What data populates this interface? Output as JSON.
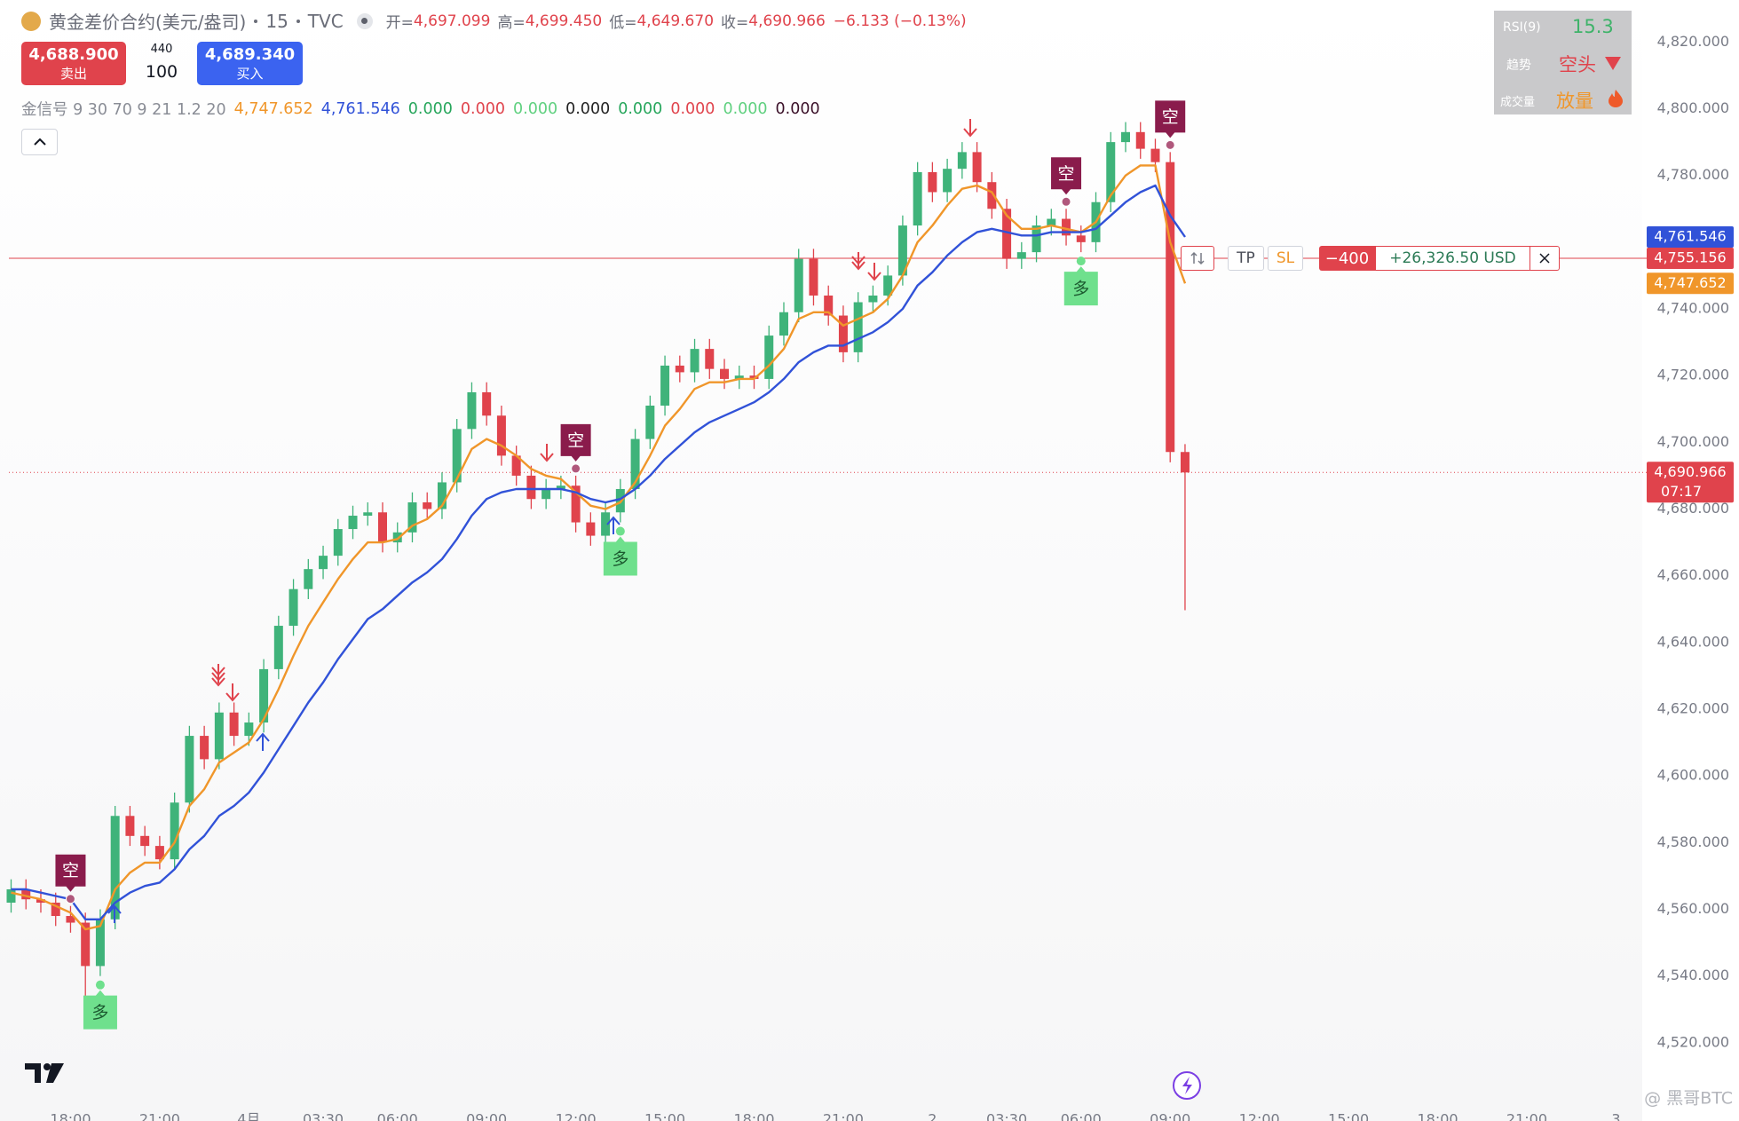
{
  "header": {
    "title": "黄金差价合约(美元/盎司)",
    "interval": "15",
    "source": "TVC",
    "ohlc": [
      {
        "label": "开=",
        "value": "4,697.099"
      },
      {
        "label": "高=",
        "value": "4,699.450"
      },
      {
        "label": "低=",
        "value": "4,649.670"
      },
      {
        "label": "收=",
        "value": "4,690.966"
      }
    ],
    "change": "−6.133 (−0.13%)"
  },
  "trade": {
    "sell_price": "4,688.900",
    "sell_label": "卖出",
    "spread": "440",
    "quantity": "100",
    "buy_price": "4,689.340",
    "buy_label": "买入"
  },
  "indicator": {
    "name": "金信号 9 30 70 9 21 1.2 20",
    "values": [
      {
        "text": "4,747.652",
        "color": "#f0962a"
      },
      {
        "text": "4,761.546",
        "color": "#3152d8"
      },
      {
        "text": "0.000",
        "color": "#26a65b"
      },
      {
        "text": "0.000",
        "color": "#e0434c"
      },
      {
        "text": "0.000",
        "color": "#5fd07f"
      },
      {
        "text": "0.000",
        "color": "#222222"
      },
      {
        "text": "0.000",
        "color": "#26a65b"
      },
      {
        "text": "0.000",
        "color": "#e0434c"
      },
      {
        "text": "0.000",
        "color": "#5fd07f"
      },
      {
        "text": "0.000",
        "color": "#3a1028"
      }
    ]
  },
  "rsi_panel": {
    "rsi_label": "RSI(9)",
    "rsi_value": "15.3",
    "trend_label": "趋势",
    "trend_value": "空头",
    "volume_label": "成交量",
    "volume_value": "放量"
  },
  "watermark": "@ 黑哥BTC",
  "chart_data": {
    "type": "candlestick",
    "categories": [
      null,
      null,
      null,
      null,
      "18:00",
      null,
      null,
      null,
      null,
      null,
      "21:00",
      null,
      null,
      null,
      null,
      null,
      "4月",
      null,
      null,
      null,
      null,
      "03:30",
      null,
      null,
      null,
      null,
      "06:00",
      null,
      null,
      null,
      null,
      null,
      "09:00",
      null,
      null,
      null,
      null,
      null,
      "12:00",
      null,
      null,
      null,
      null,
      null,
      "15:00",
      null,
      null,
      null,
      null,
      null,
      "18:00",
      null,
      null,
      null,
      null,
      null,
      "21:00",
      null,
      null,
      null,
      null,
      null,
      "2",
      null,
      null,
      null,
      null,
      "03:30",
      null,
      null,
      null,
      null,
      "06:00",
      null,
      null,
      null,
      null,
      null,
      "09:00",
      null,
      null,
      null,
      null,
      null,
      "12:00",
      null,
      null,
      null,
      null,
      null,
      "15:00",
      null,
      null,
      null,
      null,
      null,
      "18:00",
      null,
      null,
      null,
      null,
      null,
      "21:00",
      null,
      null,
      null,
      null,
      null,
      "3"
    ],
    "open": [
      4562,
      4566,
      4563,
      4562,
      4558,
      4556,
      4543,
      4557,
      4588,
      4582,
      4579,
      4575,
      4592,
      4612,
      4605,
      4619,
      4612,
      4616,
      4632,
      4645,
      4656,
      4662,
      4666,
      4674,
      4678,
      4679,
      4670,
      4673,
      4682,
      4680,
      4688,
      4704,
      4715,
      4708,
      4696,
      4690,
      4683,
      4686,
      4687,
      4676,
      4672,
      4679,
      4686,
      4701,
      4711,
      4723,
      4721,
      4728,
      4722,
      4719,
      4720,
      4719,
      4732,
      4739,
      4755,
      4744,
      4738,
      4727,
      4742,
      4744,
      4750,
      4765,
      4781,
      4775,
      4782,
      4787,
      4778,
      4770,
      4755,
      4757,
      4765,
      4767,
      4762,
      4760,
      4772,
      4790,
      4793,
      4788,
      4784,
      4697.099,
      null,
      null,
      null,
      null,
      null,
      null,
      null,
      null,
      null,
      null,
      null,
      null,
      null,
      null,
      null,
      null,
      null,
      null,
      null,
      null,
      null,
      null,
      null,
      null,
      null,
      null,
      null,
      null,
      null
    ],
    "high": [
      4569,
      4569,
      4566,
      4565,
      4561,
      4559,
      4560,
      4591,
      4591,
      4585,
      4582,
      4595,
      4615,
      4615,
      4622,
      4622,
      4619,
      4635,
      4648,
      4659,
      4665,
      4669,
      4677,
      4681,
      4682,
      4682,
      4676,
      4685,
      4685,
      4691,
      4707,
      4718,
      4718,
      4711,
      4699,
      4693,
      4689,
      4690,
      4690,
      4679,
      4682,
      4689,
      4704,
      4714,
      4726,
      4726,
      4731,
      4731,
      4725,
      4723,
      4723,
      4735,
      4742,
      4758,
      4758,
      4747,
      4741,
      4745,
      4747,
      4753,
      4768,
      4784,
      4784,
      4785,
      4790,
      4790,
      4781,
      4773,
      4760,
      4768,
      4770,
      4770,
      4765,
      4775,
      4793,
      4796,
      4796,
      4791,
      4787,
      4699.45,
      null,
      null,
      null,
      null,
      null,
      null,
      null,
      null,
      null,
      null,
      null,
      null,
      null,
      null,
      null,
      null,
      null,
      null,
      null,
      null,
      null,
      null,
      null,
      null,
      null,
      null,
      null,
      null,
      null
    ],
    "low": [
      4559,
      4560,
      4559,
      4555,
      4553,
      4529,
      4540,
      4554,
      4579,
      4576,
      4572,
      4572,
      4589,
      4602,
      4602,
      4609,
      4609,
      4613,
      4629,
      4642,
      4653,
      4659,
      4663,
      4671,
      4675,
      4667,
      4667,
      4670,
      4677,
      4677,
      4685,
      4701,
      4705,
      4693,
      4687,
      4680,
      4680,
      4683,
      4673,
      4669,
      4669,
      4676,
      4683,
      4698,
      4708,
      4718,
      4718,
      4719,
      4716,
      4716,
      4716,
      4716,
      4729,
      4736,
      4741,
      4735,
      4724,
      4724,
      4739,
      4741,
      4747,
      4762,
      4772,
      4772,
      4779,
      4775,
      4767,
      4752,
      4752,
      4754,
      4762,
      4759,
      4757,
      4757,
      4769,
      4787,
      4785,
      4781,
      4694,
      4649.67,
      null,
      null,
      null,
      null,
      null,
      null,
      null,
      null,
      null,
      null,
      null,
      null,
      null,
      null,
      null,
      null,
      null,
      null,
      null,
      null,
      null,
      null,
      null,
      null,
      null,
      null,
      null,
      null,
      null
    ],
    "close": [
      4566,
      4563,
      4562,
      4558,
      4556,
      4543,
      4557,
      4588,
      4582,
      4579,
      4575,
      4592,
      4612,
      4605,
      4619,
      4612,
      4616,
      4632,
      4645,
      4656,
      4662,
      4666,
      4674,
      4678,
      4679,
      4670,
      4673,
      4682,
      4680,
      4688,
      4704,
      4715,
      4708,
      4696,
      4690,
      4683,
      4686,
      4687,
      4676,
      4672,
      4679,
      4686,
      4701,
      4711,
      4723,
      4721,
      4728,
      4722,
      4719,
      4720,
      4719,
      4732,
      4739,
      4755,
      4744,
      4738,
      4727,
      4742,
      4744,
      4750,
      4765,
      4781,
      4775,
      4782,
      4787,
      4778,
      4770,
      4755,
      4757,
      4765,
      4767,
      4762,
      4760,
      4772,
      4790,
      4793,
      4788,
      4784,
      4697.099,
      4690.966,
      null,
      null,
      null,
      null,
      null,
      null,
      null,
      null,
      null,
      null,
      null,
      null,
      null,
      null,
      null,
      null,
      null,
      null,
      null,
      null,
      null,
      null,
      null,
      null,
      null,
      null,
      null,
      null,
      null
    ],
    "up_color": "#3fb37a",
    "down_color": "#e0434c",
    "lines": [
      {
        "color": "#f0962a",
        "values": [
          4565,
          4564,
          4563,
          4561,
          4559,
          4554,
          4555,
          4566,
          4571,
          4574,
          4574,
          4580,
          4591,
          4596,
          4604,
          4607,
          4610,
          4617,
          4626,
          4636,
          4645,
          4652,
          4659,
          4665,
          4670,
          4670,
          4671,
          4675,
          4677,
          4681,
          4689,
          4698,
          4701,
          4699,
          4696,
          4692,
          4690,
          4689,
          4685,
          4681,
          4680,
          4682,
          4688,
          4696,
          4705,
          4710,
          4716,
          4718,
          4718,
          4719,
          4719,
          4723,
          4728,
          4737,
          4739,
          4739,
          4735,
          4737,
          4739,
          4743,
          4750,
          4760,
          4765,
          4771,
          4776,
          4777,
          4775,
          4768,
          4764,
          4764,
          4765,
          4764,
          4763,
          4766,
          4774,
          4780,
          4783,
          4783,
          4760,
          4747.652,
          null,
          null,
          null,
          null,
          null,
          null,
          null,
          null,
          null,
          null,
          null,
          null,
          null,
          null,
          null,
          null,
          null,
          null,
          null,
          null,
          null,
          null,
          null,
          null,
          null,
          null,
          null,
          null,
          null
        ]
      },
      {
        "color": "#3152d8",
        "values": [
          4566,
          4566,
          4565,
          4564,
          4563,
          4557,
          4557,
          4562,
          4565,
          4567,
          4568,
          4572,
          4578,
          4582,
          4588,
          4591,
          4595,
          4601,
          4608,
          4615,
          4622,
          4628,
          4635,
          4641,
          4647,
          4650,
          4654,
          4658,
          4661,
          4665,
          4671,
          4678,
          4683,
          4685,
          4686,
          4686,
          4686,
          4686,
          4685,
          4683,
          4682,
          4683,
          4686,
          4690,
          4695,
          4699,
          4703,
          4706,
          4708,
          4710,
          4712,
          4715,
          4719,
          4724,
          4727,
          4729,
          4729,
          4731,
          4733,
          4736,
          4740,
          4747,
          4751,
          4756,
          4760,
          4763,
          4764,
          4763,
          4762,
          4762,
          4763,
          4763,
          4763,
          4764,
          4768,
          4772,
          4775,
          4777,
          4768,
          4761.546,
          null,
          null,
          null,
          null,
          null,
          null,
          null,
          null,
          null,
          null,
          null,
          null,
          null,
          null,
          null,
          null,
          null,
          null,
          null,
          null,
          null,
          null,
          null,
          null,
          null,
          null,
          null,
          null,
          null
        ]
      }
    ],
    "ylim": [
      4500,
      4832.6
    ],
    "yticks": [
      {
        "value": 4520,
        "label": "4,520.000"
      },
      {
        "value": 4540,
        "label": "4,540.000"
      },
      {
        "value": 4560,
        "label": "4,560.000"
      },
      {
        "value": 4580,
        "label": "4,580.000"
      },
      {
        "value": 4600,
        "label": "4,600.000"
      },
      {
        "value": 4620,
        "label": "4,620.000"
      },
      {
        "value": 4640,
        "label": "4,640.000"
      },
      {
        "value": 4660,
        "label": "4,660.000"
      },
      {
        "value": 4680,
        "label": "4,680.000"
      },
      {
        "value": 4700,
        "label": "4,700.000"
      },
      {
        "value": 4720,
        "label": "4,720.000"
      },
      {
        "value": 4740,
        "label": "4,740.000"
      },
      {
        "value": 4760,
        "label": "4,760.000"
      },
      {
        "value": 4780,
        "label": "4,780.000"
      },
      {
        "value": 4800,
        "label": "4,800.000"
      },
      {
        "value": 4820,
        "label": "4,820.000"
      }
    ],
    "grid": false,
    "price_labels": [
      {
        "value": 4761.546,
        "label": "4,761.546",
        "color": "#3152d8"
      },
      {
        "value": 4755.156,
        "label": "4,755.156",
        "color": "#e0434c"
      },
      {
        "value": 4747.652,
        "label": "4,747.652",
        "color": "#f0962a"
      },
      {
        "value": 4690.966,
        "label": "4,690.966",
        "countdown": "07:17",
        "color": "#e0434c",
        "line": "dotted"
      }
    ],
    "position": {
      "price": 4755.156,
      "quantity": "−400",
      "pnl": "+26,326.50 USD",
      "tp": "TP",
      "sl": "SL"
    },
    "signals": [
      {
        "index": 4,
        "label": "空",
        "position": "above",
        "color": "#8a1c4c",
        "text_color": "#ffffff"
      },
      {
        "index": 38,
        "label": "空",
        "position": "above",
        "color": "#8a1c4c",
        "text_color": "#ffffff"
      },
      {
        "index": 71,
        "label": "空",
        "position": "above",
        "color": "#8a1c4c",
        "text_color": "#ffffff"
      },
      {
        "index": 78,
        "label": "空",
        "position": "above",
        "color": "#8a1c4c",
        "text_color": "#ffffff"
      },
      {
        "index": 6,
        "label": "多",
        "position": "below",
        "color": "#6fe08d",
        "text_color": "#1c5a30"
      },
      {
        "index": 41,
        "label": "多",
        "position": "below",
        "color": "#6fe08d",
        "text_color": "#1c5a30"
      },
      {
        "index": 72,
        "label": "多",
        "position": "below",
        "color": "#6fe08d",
        "text_color": "#1c5a30"
      }
    ]
  }
}
